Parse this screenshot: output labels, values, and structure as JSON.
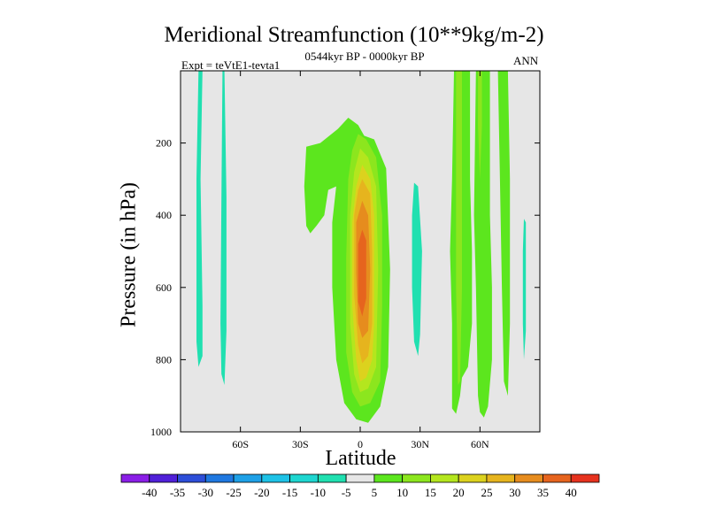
{
  "chart_data": {
    "type": "contour",
    "title": "Meridional Streamfunction (10**9kg/m-2)",
    "left_label": "Expt = teVtE1-tevta1",
    "center_label": "0544kyr BP - 0000kyr BP",
    "right_label": "ANN",
    "xlabel": "Latitude",
    "ylabel": "Pressure (in hPa)",
    "xlim": [
      -90,
      90
    ],
    "ylim": [
      1000,
      0
    ],
    "x_ticks": [
      {
        "value": -60,
        "label": "60S"
      },
      {
        "value": -30,
        "label": "30S"
      },
      {
        "value": 0,
        "label": "0"
      },
      {
        "value": 30,
        "label": "30N"
      },
      {
        "value": 60,
        "label": "60N"
      }
    ],
    "y_ticks": [
      {
        "value": 200,
        "label": "200"
      },
      {
        "value": 400,
        "label": "400"
      },
      {
        "value": 600,
        "label": "600"
      },
      {
        "value": 800,
        "label": "800"
      },
      {
        "value": 1000,
        "label": "1000"
      }
    ],
    "background_color": "#e6e6e6",
    "colorbar": {
      "levels": [
        "-40",
        "-35",
        "-30",
        "-25",
        "-20",
        "-15",
        "-10",
        "-5",
        "5",
        "10",
        "15",
        "20",
        "25",
        "30",
        "35",
        "40"
      ],
      "colors": [
        "#8a1ee6",
        "#5020d8",
        "#2d4ed8",
        "#1f78e0",
        "#1ea0e6",
        "#1ec2e6",
        "#1ed6d0",
        "#20e0b0",
        "#e6e6e6",
        "#5ce61e",
        "#8ce61e",
        "#b4e61e",
        "#dcd21e",
        "#e6b41e",
        "#e68c1e",
        "#e6641e",
        "#e6321e"
      ]
    },
    "features": [
      {
        "name": "negative-strip-west-1",
        "sign": "negative",
        "level_index": 7,
        "polygon": [
          [
            -81,
            0
          ],
          [
            -79,
            0
          ],
          [
            -80,
            300
          ],
          [
            -79,
            650
          ],
          [
            -79,
            790
          ],
          [
            -81,
            820
          ],
          [
            -82,
            750
          ],
          [
            -82,
            300
          ]
        ]
      },
      {
        "name": "negative-strip-west-2",
        "sign": "negative",
        "level_index": 7,
        "polygon": [
          [
            -69,
            0
          ],
          [
            -68,
            0
          ],
          [
            -67,
            350
          ],
          [
            -67,
            720
          ],
          [
            -68,
            870
          ],
          [
            -69.5,
            840
          ],
          [
            -70,
            700
          ],
          [
            -69.5,
            350
          ]
        ]
      },
      {
        "name": "negative-patch-north",
        "sign": "negative",
        "level_index": 7,
        "polygon": [
          [
            27,
            310
          ],
          [
            29,
            320
          ],
          [
            31,
            500
          ],
          [
            30,
            730
          ],
          [
            29,
            790
          ],
          [
            27,
            750
          ],
          [
            26,
            600
          ],
          [
            26,
            400
          ]
        ]
      },
      {
        "name": "negative-sliver-east",
        "sign": "negative",
        "level_index": 7,
        "polygon": [
          [
            82,
            410
          ],
          [
            83,
            420
          ],
          [
            83,
            720
          ],
          [
            82,
            800
          ],
          [
            81.5,
            700
          ],
          [
            81.5,
            500
          ]
        ]
      },
      {
        "name": "positive-cell-5",
        "sign": "positive",
        "level_index": 9,
        "polygon": [
          [
            -11,
            160
          ],
          [
            -6,
            130
          ],
          [
            -1,
            150
          ],
          [
            2,
            180
          ],
          [
            7,
            190
          ],
          [
            13,
            270
          ],
          [
            15,
            550
          ],
          [
            14,
            820
          ],
          [
            10,
            930
          ],
          [
            4,
            975
          ],
          [
            -2,
            965
          ],
          [
            -8,
            920
          ],
          [
            -12,
            800
          ],
          [
            -14,
            600
          ],
          [
            -14,
            420
          ],
          [
            -12,
            320
          ],
          [
            -16,
            330
          ],
          [
            -18,
            400
          ],
          [
            -22,
            430
          ],
          [
            -25,
            450
          ],
          [
            -27,
            430
          ],
          [
            -28,
            320
          ],
          [
            -27,
            210
          ],
          [
            -20,
            200
          ]
        ]
      },
      {
        "name": "positive-cell-10",
        "sign": "positive",
        "level_index": 10,
        "polygon": [
          [
            -1,
            175
          ],
          [
            3,
            190
          ],
          [
            8,
            240
          ],
          [
            11,
            400
          ],
          [
            11,
            650
          ],
          [
            10,
            860
          ],
          [
            5,
            920
          ],
          [
            0,
            930
          ],
          [
            -4,
            890
          ],
          [
            -7,
            780
          ],
          [
            -7,
            520
          ],
          [
            -6,
            300
          ],
          [
            -4,
            220
          ]
        ]
      },
      {
        "name": "positive-cell-15",
        "sign": "positive",
        "level_index": 11,
        "polygon": [
          [
            0,
            215
          ],
          [
            4,
            240
          ],
          [
            8,
            320
          ],
          [
            9,
            550
          ],
          [
            8,
            820
          ],
          [
            4,
            880
          ],
          [
            0,
            890
          ],
          [
            -3,
            840
          ],
          [
            -5,
            700
          ],
          [
            -5,
            400
          ],
          [
            -3,
            280
          ]
        ]
      },
      {
        "name": "positive-cell-20",
        "sign": "positive",
        "level_index": 12,
        "polygon": [
          [
            1,
            260
          ],
          [
            5,
            300
          ],
          [
            7,
            400
          ],
          [
            7,
            700
          ],
          [
            6,
            800
          ],
          [
            3,
            850
          ],
          [
            0,
            860
          ],
          [
            -2,
            800
          ],
          [
            -4,
            650
          ],
          [
            -4,
            420
          ],
          [
            -2,
            320
          ]
        ]
      },
      {
        "name": "positive-cell-25",
        "sign": "positive",
        "level_index": 13,
        "polygon": [
          [
            1,
            300
          ],
          [
            5,
            340
          ],
          [
            6,
            500
          ],
          [
            6,
            700
          ],
          [
            4,
            790
          ],
          [
            1,
            810
          ],
          [
            -1,
            760
          ],
          [
            -3,
            620
          ],
          [
            -3,
            400
          ],
          [
            -1,
            330
          ]
        ]
      },
      {
        "name": "positive-cell-30",
        "sign": "positive",
        "level_index": 14,
        "polygon": [
          [
            1,
            360
          ],
          [
            4,
            400
          ],
          [
            5,
            550
          ],
          [
            4,
            720
          ],
          [
            1,
            740
          ],
          [
            -1,
            700
          ],
          [
            -2,
            560
          ],
          [
            -2,
            420
          ]
        ]
      },
      {
        "name": "positive-core",
        "sign": "positive",
        "level_index": 15,
        "polygon": [
          [
            1,
            440
          ],
          [
            3,
            470
          ],
          [
            3,
            630
          ],
          [
            1,
            680
          ],
          [
            -1,
            640
          ],
          [
            -1,
            480
          ]
        ]
      },
      {
        "name": "positive-strip-north-1",
        "sign": "positive",
        "level_index": 9,
        "polygon": [
          [
            47,
            0
          ],
          [
            55,
            0
          ],
          [
            55,
            300
          ],
          [
            56,
            500
          ],
          [
            56,
            700
          ],
          [
            54,
            820
          ],
          [
            51,
            850
          ],
          [
            50,
            900
          ],
          [
            48,
            950
          ],
          [
            46,
            935
          ],
          [
            46,
            700
          ],
          [
            45,
            500
          ],
          [
            46,
            300
          ]
        ]
      },
      {
        "name": "positive-strip-north-1-inner",
        "sign": "positive",
        "level_index": 10,
        "polygon": [
          [
            48,
            0
          ],
          [
            51,
            0
          ],
          [
            51,
            200
          ],
          [
            51,
            600
          ],
          [
            50,
            860
          ],
          [
            49,
            870
          ],
          [
            48,
            600
          ],
          [
            48,
            200
          ]
        ]
      },
      {
        "name": "positive-strip-north-2",
        "sign": "positive",
        "level_index": 9,
        "polygon": [
          [
            58,
            0
          ],
          [
            65,
            0
          ],
          [
            65,
            400
          ],
          [
            66,
            600
          ],
          [
            66,
            800
          ],
          [
            64,
            930
          ],
          [
            62,
            960
          ],
          [
            60,
            945
          ],
          [
            59,
            900
          ],
          [
            58,
            600
          ],
          [
            57,
            400
          ]
        ]
      },
      {
        "name": "positive-strip-north-2-inner",
        "sign": "positive",
        "level_index": 10,
        "polygon": [
          [
            59,
            0
          ],
          [
            61,
            0
          ],
          [
            61,
            150
          ],
          [
            60,
            300
          ],
          [
            59,
            150
          ]
        ]
      },
      {
        "name": "positive-strip-north-3",
        "sign": "positive",
        "level_index": 9,
        "polygon": [
          [
            69,
            0
          ],
          [
            74,
            0
          ],
          [
            75,
            300
          ],
          [
            75,
            700
          ],
          [
            74,
            900
          ],
          [
            72,
            860
          ],
          [
            71,
            600
          ],
          [
            70,
            300
          ]
        ]
      }
    ]
  }
}
